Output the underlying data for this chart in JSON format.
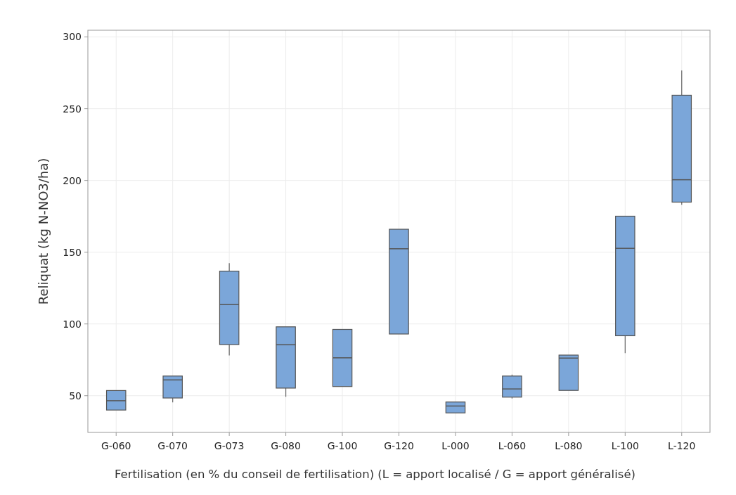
{
  "chart_data": {
    "type": "box",
    "xlabel": "Fertilisation (en % du conseil de fertilisation) (L = apport localisé / G = apport généralisé)",
    "ylabel": "Reliquat (kg N-NO3/ha)",
    "categories": [
      "G-060",
      "G-070",
      "G-073",
      "G-080",
      "G-100",
      "G-120",
      "L-000",
      "L-060",
      "L-080",
      "L-100",
      "L-120"
    ],
    "color": "#7ba6d9",
    "boxes": [
      {
        "low": 40,
        "q1": 40,
        "median": 46.5,
        "q3": 53.6,
        "high": 53.6
      },
      {
        "low": 45.4,
        "q1": 48.4,
        "median": 61,
        "q3": 63.7,
        "high": 63.7
      },
      {
        "low": 78,
        "q1": 85.6,
        "median": 113.5,
        "q3": 136.8,
        "high": 142.4
      },
      {
        "low": 49.2,
        "q1": 55.3,
        "median": 85.5,
        "q3": 98,
        "high": 98
      },
      {
        "low": 56.4,
        "q1": 56.4,
        "median": 76.4,
        "q3": 96.2,
        "high": 96.2
      },
      {
        "low": 93,
        "q1": 93,
        "median": 152.4,
        "q3": 166,
        "high": 166
      },
      {
        "low": 38,
        "q1": 38,
        "median": 42.8,
        "q3": 45.6,
        "high": 45.6
      },
      {
        "low": 48,
        "q1": 49,
        "median": 54.7,
        "q3": 63.7,
        "high": 64.7
      },
      {
        "low": 53.7,
        "q1": 53.7,
        "median": 76.2,
        "q3": 78.3,
        "high": 78.3
      },
      {
        "low": 79.6,
        "q1": 91.8,
        "median": 152.7,
        "q3": 175.1,
        "high": 175.1
      },
      {
        "low": 183,
        "q1": 184.9,
        "median": 200.5,
        "q3": 259.4,
        "high": 276.6
      }
    ],
    "ylim": [
      24.4,
      304.7
    ],
    "yticks": [
      50,
      100,
      150,
      200,
      250,
      300
    ],
    "grid": true
  }
}
